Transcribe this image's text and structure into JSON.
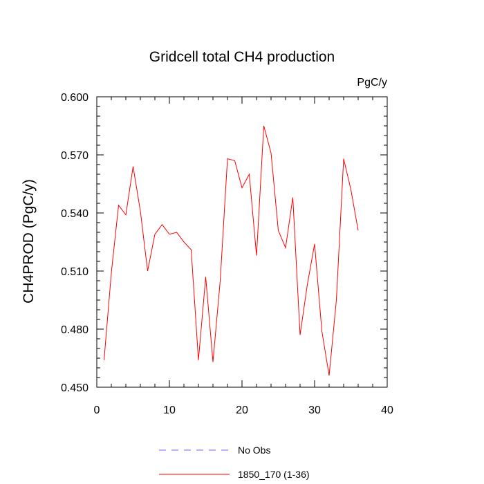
{
  "chart_data": {
    "type": "line",
    "title": "Gridcell total CH4 production",
    "units": "PgC/y",
    "xlabel": "",
    "ylabel": "CH4PROD  (PgC/y)",
    "xlim": [
      0,
      40
    ],
    "ylim": [
      0.45,
      0.6
    ],
    "xticks": [
      0,
      10,
      20,
      30,
      40
    ],
    "xtick_labels": [
      "0",
      "10",
      "20",
      "30",
      "40"
    ],
    "yticks": [
      0.45,
      0.48,
      0.51,
      0.54,
      0.57,
      0.6
    ],
    "ytick_labels": [
      "0.450",
      "0.480",
      "0.510",
      "0.540",
      "0.570",
      "0.600"
    ],
    "grid": false,
    "legend_position": "bottom",
    "series": [
      {
        "name": "1850_170 (1-36)",
        "color": "#ff0000",
        "x": [
          1,
          2,
          3,
          4,
          5,
          6,
          7,
          8,
          9,
          10,
          11,
          12,
          13,
          14,
          15,
          16,
          17,
          18,
          19,
          20,
          21,
          22,
          23,
          24,
          25,
          26,
          27,
          28,
          29,
          30,
          31,
          32,
          33,
          34,
          35,
          36
        ],
        "values": [
          0.464,
          0.509,
          0.544,
          0.539,
          0.564,
          0.541,
          0.51,
          0.529,
          0.534,
          0.529,
          0.53,
          0.525,
          0.521,
          0.464,
          0.507,
          0.463,
          0.505,
          0.568,
          0.567,
          0.553,
          0.56,
          0.518,
          0.585,
          0.571,
          0.531,
          0.522,
          0.548,
          0.477,
          0.503,
          0.524,
          0.479,
          0.456,
          0.495,
          0.568,
          0.552,
          0.531
        ]
      }
    ],
    "legend": [
      {
        "label": "No Obs",
        "color": "#6666ff",
        "style": "dashed"
      },
      {
        "label": "1850_170 (1-36)",
        "color": "#ff0000",
        "style": "solid"
      }
    ]
  }
}
